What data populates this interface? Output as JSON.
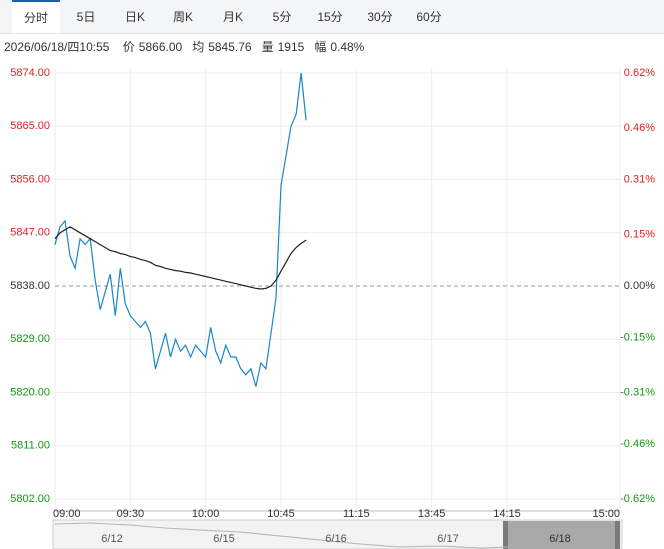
{
  "tabs": [
    "分时",
    "5日",
    "日K",
    "周K",
    "月K",
    "5分",
    "15分",
    "30分",
    "60分"
  ],
  "active_tab": 0,
  "info": {
    "datetime": "2026/06/18/四10:55",
    "fields": [
      {
        "label": "价",
        "value": "5866.00"
      },
      {
        "label": "均",
        "value": "5845.76"
      },
      {
        "label": "量",
        "value": "1915"
      },
      {
        "label": "幅",
        "value": "0.48%"
      }
    ]
  },
  "chart_data": {
    "type": "line",
    "x": [
      0,
      2,
      4,
      6,
      8,
      10,
      12,
      14,
      16,
      18,
      20,
      22,
      24,
      26,
      28,
      30,
      32,
      34,
      36,
      38,
      40,
      42,
      44,
      46,
      48,
      50,
      52,
      54,
      56,
      58,
      60,
      62,
      64,
      66,
      68,
      70,
      72,
      74,
      76,
      78,
      80,
      82,
      84,
      86,
      88,
      90,
      92,
      94,
      96,
      98,
      100
    ],
    "series": [
      {
        "name": "价",
        "color": "#1a86c8",
        "values": [
          5845,
          5848,
          5849,
          5843,
          5841,
          5846,
          5845,
          5846,
          5839,
          5834,
          5837,
          5840,
          5833,
          5841,
          5835,
          5833,
          5832,
          5831,
          5832,
          5830,
          5824,
          5827,
          5830,
          5826,
          5829,
          5827,
          5828,
          5826,
          5828,
          5827,
          5826,
          5831,
          5827,
          5825,
          5828,
          5826,
          5826,
          5824,
          5823,
          5824,
          5821,
          5825,
          5824,
          5830,
          5836,
          5855,
          5860,
          5865,
          5867,
          5874,
          5866
        ]
      },
      {
        "name": "均",
        "color": "#222222",
        "values": [
          5846,
          5847,
          5847.5,
          5848,
          5847.5,
          5847,
          5846.5,
          5846,
          5845.5,
          5845,
          5844.5,
          5844,
          5843.8,
          5843.5,
          5843.3,
          5843,
          5842.8,
          5842.5,
          5842.3,
          5842,
          5841.5,
          5841.3,
          5841,
          5840.8,
          5840.6,
          5840.5,
          5840.3,
          5840.2,
          5840,
          5839.8,
          5839.6,
          5839.4,
          5839.2,
          5839,
          5838.8,
          5838.6,
          5838.4,
          5838.2,
          5838,
          5837.8,
          5837.6,
          5837.5,
          5837.6,
          5838,
          5839,
          5840.5,
          5842,
          5843.5,
          5844.5,
          5845.2,
          5845.76
        ]
      }
    ],
    "xlim": [
      0,
      225
    ],
    "xticks": [
      {
        "value": 0,
        "label": "09:00"
      },
      {
        "value": 30,
        "label": "09:30"
      },
      {
        "value": 60,
        "label": "10:00"
      },
      {
        "value": 90,
        "label": "10:45"
      },
      {
        "value": 120,
        "label": "11:15"
      },
      {
        "value": 150,
        "label": "13:45"
      },
      {
        "value": 180,
        "label": "14:15"
      },
      {
        "value": 225,
        "label": "15:00"
      }
    ],
    "ylim": [
      5802,
      5874
    ],
    "yticks": [
      {
        "value": 5874,
        "label": "5874.00"
      },
      {
        "value": 5865,
        "label": "5865.00"
      },
      {
        "value": 5856,
        "label": "5856.00"
      },
      {
        "value": 5847,
        "label": "5847.00"
      },
      {
        "value": 5838,
        "label": "5838.00"
      },
      {
        "value": 5829,
        "label": "5829.00"
      },
      {
        "value": 5820,
        "label": "5820.00"
      },
      {
        "value": 5811,
        "label": "5811.00"
      },
      {
        "value": 5802,
        "label": "5802.00"
      }
    ],
    "y2lim": [
      -0.62,
      0.62
    ],
    "y2ticks": [
      {
        "value": 0.62,
        "label": "0.62%"
      },
      {
        "value": 0.46,
        "label": "0.46%"
      },
      {
        "value": 0.31,
        "label": "0.31%"
      },
      {
        "value": 0.15,
        "label": "0.15%"
      },
      {
        "value": 0,
        "label": "0.00%"
      },
      {
        "value": -0.15,
        "label": "-0.15%"
      },
      {
        "value": -0.31,
        "label": "-0.31%"
      },
      {
        "value": -0.46,
        "label": "-0.46%"
      },
      {
        "value": -0.62,
        "label": "-0.62%"
      }
    ],
    "reference_line": 5838,
    "up_color": "#e02020",
    "down_color": "#139913",
    "flat_color": "#333333",
    "grid": true
  },
  "navigator": {
    "labels": [
      "6/12",
      "6/15",
      "6/16",
      "6/17",
      "6/18"
    ]
  }
}
